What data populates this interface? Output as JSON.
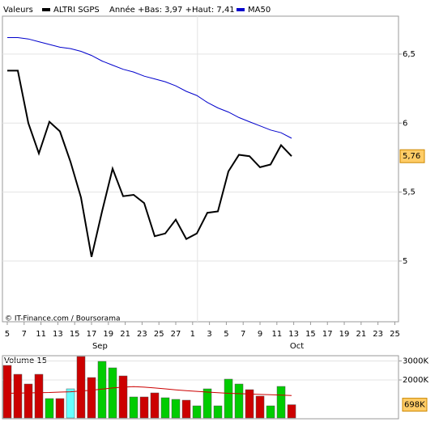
{
  "chart_data": [
    {
      "type": "line",
      "legend_label": "Valeurs",
      "range_text": "Année +Bas: 3,97 +Haut: 7,41",
      "credit": "© IT-Finance.com / Boursorama",
      "x": [
        0,
        1,
        2,
        3,
        4,
        5,
        6,
        7,
        8,
        9,
        10,
        11,
        12,
        13,
        14,
        15,
        16,
        17,
        18,
        19,
        20,
        21,
        22,
        23,
        24,
        25,
        26,
        27
      ],
      "xlim": [
        -0.46,
        37.15
      ],
      "xticks": [
        {
          "value": 0,
          "label": "5"
        },
        {
          "value": 1.6,
          "label": "7"
        },
        {
          "value": 3.2,
          "label": "11"
        },
        {
          "value": 4.8,
          "label": "13"
        },
        {
          "value": 6.4,
          "label": "15"
        },
        {
          "value": 8,
          "label": "17"
        },
        {
          "value": 9.6,
          "label": "19"
        },
        {
          "value": 11.2,
          "label": "21"
        },
        {
          "value": 12.8,
          "label": "23"
        },
        {
          "value": 14.4,
          "label": "25"
        },
        {
          "value": 16,
          "label": "27"
        },
        {
          "value": 17.6,
          "label": "1"
        },
        {
          "value": 19.2,
          "label": "3"
        },
        {
          "value": 20.8,
          "label": "5"
        },
        {
          "value": 22.4,
          "label": "7"
        },
        {
          "value": 24,
          "label": "9"
        },
        {
          "value": 25.6,
          "label": "11"
        },
        {
          "value": 27.2,
          "label": "13"
        },
        {
          "value": 28.8,
          "label": "15"
        },
        {
          "value": 30.4,
          "label": "17"
        },
        {
          "value": 32,
          "label": "19"
        },
        {
          "value": 33.6,
          "label": "21"
        },
        {
          "value": 35.2,
          "label": "23"
        },
        {
          "value": 36.8,
          "label": "25"
        }
      ],
      "month_ticks": [
        {
          "value": 8.8,
          "label": "Sep"
        },
        {
          "value": 27.5,
          "label": "Oct"
        }
      ],
      "ylim": [
        4.56,
        6.775
      ],
      "yticks": [
        {
          "value": 6.5,
          "label": "6,5"
        },
        6,
        {
          "value": 5.5,
          "label": "5,5"
        },
        5
      ],
      "grid": true,
      "last_price": {
        "value": 5.76,
        "label": "5,76"
      },
      "series": [
        {
          "name": "ALTRI SGPS",
          "color": "#000000",
          "values": [
            6.38,
            6.38,
            6.0,
            5.78,
            6.01,
            5.94,
            5.72,
            5.46,
            5.03,
            5.36,
            5.67,
            5.47,
            5.48,
            5.42,
            5.18,
            5.2,
            5.3,
            5.16,
            5.2,
            5.35,
            5.36,
            5.65,
            5.77,
            5.76,
            5.68,
            5.7,
            5.84,
            5.76
          ]
        },
        {
          "name": "MA50",
          "color": "#0000cc",
          "values": [
            6.62,
            6.62,
            6.61,
            6.59,
            6.57,
            6.55,
            6.54,
            6.52,
            6.49,
            6.45,
            6.42,
            6.39,
            6.37,
            6.34,
            6.32,
            6.3,
            6.27,
            6.23,
            6.2,
            6.15,
            6.11,
            6.08,
            6.04,
            6.01,
            5.98,
            5.95,
            5.93,
            5.89
          ]
        }
      ]
    },
    {
      "type": "bar",
      "title": "Volume 15",
      "ylim": [
        0,
        3277
      ],
      "yticks": [
        {
          "value": 3000,
          "label": "3000K"
        },
        {
          "value": 2000,
          "label": "2000K"
        }
      ],
      "last_volume": {
        "value": 698,
        "label": "698K"
      },
      "series": [
        {
          "colors": [
            "#cc0000",
            "#cc0000",
            "#cc0000",
            "#cc0000",
            "#00cc00",
            "#cc0000",
            "#66ffff",
            "#cc0000",
            "#cc0000",
            "#00cc00",
            "#00cc00",
            "#cc0000",
            "#00cc00",
            "#cc0000",
            "#cc0000",
            "#00cc00",
            "#00cc00",
            "#cc0000",
            "#00cc00",
            "#00cc00",
            "#00cc00",
            "#00cc00",
            "#00cc00",
            "#cc0000",
            "#cc0000",
            "#00cc00",
            "#00cc00",
            "#cc0000"
          ],
          "values": [
            2766,
            2298,
            1787,
            2298,
            1021,
            1021,
            1532,
            3234,
            2128,
            2979,
            2638,
            2213,
            1106,
            1106,
            1319,
            1064,
            979,
            936,
            638,
            1532,
            638,
            2043,
            1787,
            1489,
            1149,
            638,
            1660,
            698
          ]
        },
        {
          "color": "#cc0000",
          "values": [
            1300,
            1310,
            1320,
            1330,
            1340,
            1360,
            1380,
            1420,
            1460,
            1520,
            1580,
            1620,
            1650,
            1620,
            1580,
            1530,
            1480,
            1440,
            1400,
            1360,
            1330,
            1300,
            1280,
            1260,
            1240,
            1220,
            1200,
            1180
          ]
        }
      ]
    }
  ]
}
